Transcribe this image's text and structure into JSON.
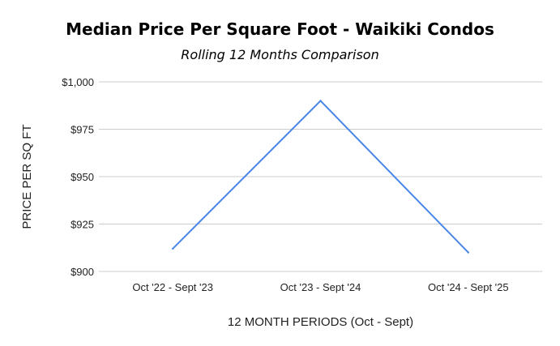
{
  "chart_data": {
    "type": "line",
    "title": "Median Price Per Square Foot - Waikiki Condos",
    "subtitle": "Rolling 12 Months Comparison",
    "xlabel": "12 MONTH PERIODS (Oct - Sept)",
    "ylabel": "PRICE PER SQ FT",
    "categories": [
      "Oct '22 - Sept '23",
      "Oct '23 - Sept '24",
      "Oct '24 - Sept '25"
    ],
    "series": [
      {
        "values": [
          912,
          990,
          910
        ],
        "color": "#4a86e8"
      }
    ],
    "ylim": [
      900,
      1000
    ],
    "yticks": [
      900,
      925,
      950,
      975,
      1000
    ],
    "ytick_labels": [
      "$900",
      "$925",
      "$950",
      "$975",
      "$1,000"
    ],
    "grid": true,
    "legend": "none"
  }
}
